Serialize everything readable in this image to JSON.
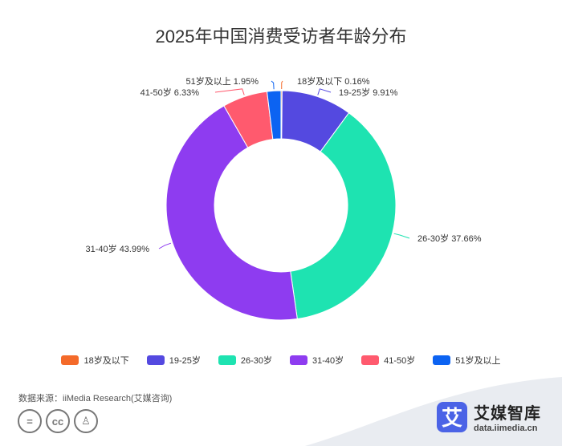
{
  "chart_data": {
    "type": "pie",
    "title": "2025年中国消费受访者年龄分布",
    "categories": [
      "18岁及以下",
      "19-25岁",
      "26-30岁",
      "31-40岁",
      "41-50岁",
      "51岁及以上"
    ],
    "values": [
      0.16,
      9.91,
      37.66,
      43.99,
      6.33,
      1.95
    ],
    "value_labels": [
      "0.16%",
      "9.91%",
      "37.66%",
      "43.99%",
      "6.33%",
      "1.95%"
    ],
    "colors": [
      "#f46a2a",
      "#5449e0",
      "#1ee3b1",
      "#8e3cf0",
      "#ff5a6e",
      "#0c63f2"
    ],
    "donut": true,
    "legend_position": "bottom"
  },
  "source": "数据来源：iiMedia Research(艾媒咨询)",
  "brand": {
    "logo_char": "艾",
    "name": "艾媒智库",
    "url": "data.iimedia.cn"
  },
  "license_icons": [
    "equals-icon",
    "cc-icon",
    "person-icon"
  ],
  "license_glyphs": [
    "=",
    "cc",
    "♙"
  ]
}
